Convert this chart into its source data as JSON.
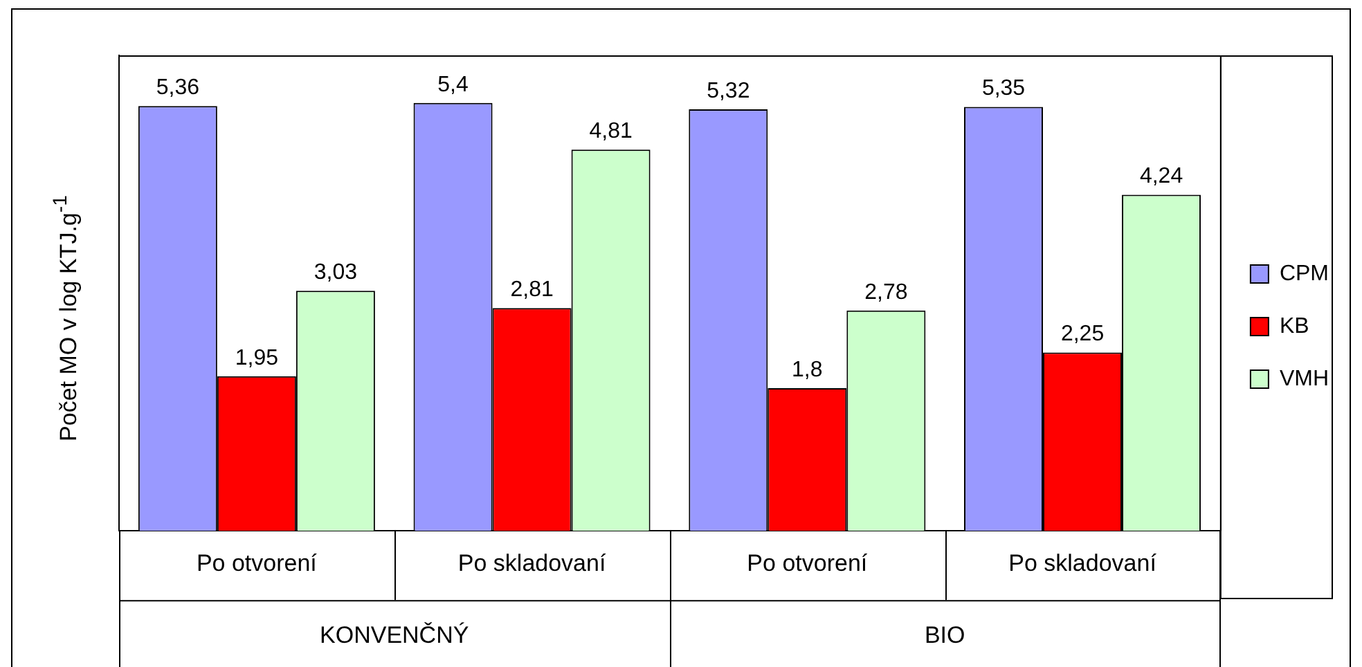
{
  "chart_data": {
    "type": "bar",
    "ylabel": "Počet MO v log KTJ.g$^{-1}$",
    "categories": [
      "Po otvorení",
      "Po skladovaní",
      "Po otvorení",
      "Po skladovaní"
    ],
    "annotations": [
      "KONVENČNÝ",
      "BIO"
    ],
    "series": [
      {
        "name": "CPM",
        "color": "#9999ff",
        "values": [
          5.36,
          5.4,
          5.32,
          5.35
        ],
        "value_labels": [
          "5,36",
          "5,4",
          "5,32",
          "5,35"
        ]
      },
      {
        "name": "KB",
        "color": "#ff0000",
        "values": [
          1.95,
          2.81,
          1.8,
          2.25
        ],
        "value_labels": [
          "1,95",
          "2,81",
          "1,8",
          "2,25"
        ]
      },
      {
        "name": "VMH",
        "color": "#ccffcc",
        "values": [
          3.03,
          4.81,
          2.78,
          4.24
        ],
        "value_labels": [
          "3,03",
          "4,81",
          "2,78",
          "4,24"
        ]
      }
    ],
    "legend": "right",
    "grid": false,
    "tick_labels": "x"
  }
}
